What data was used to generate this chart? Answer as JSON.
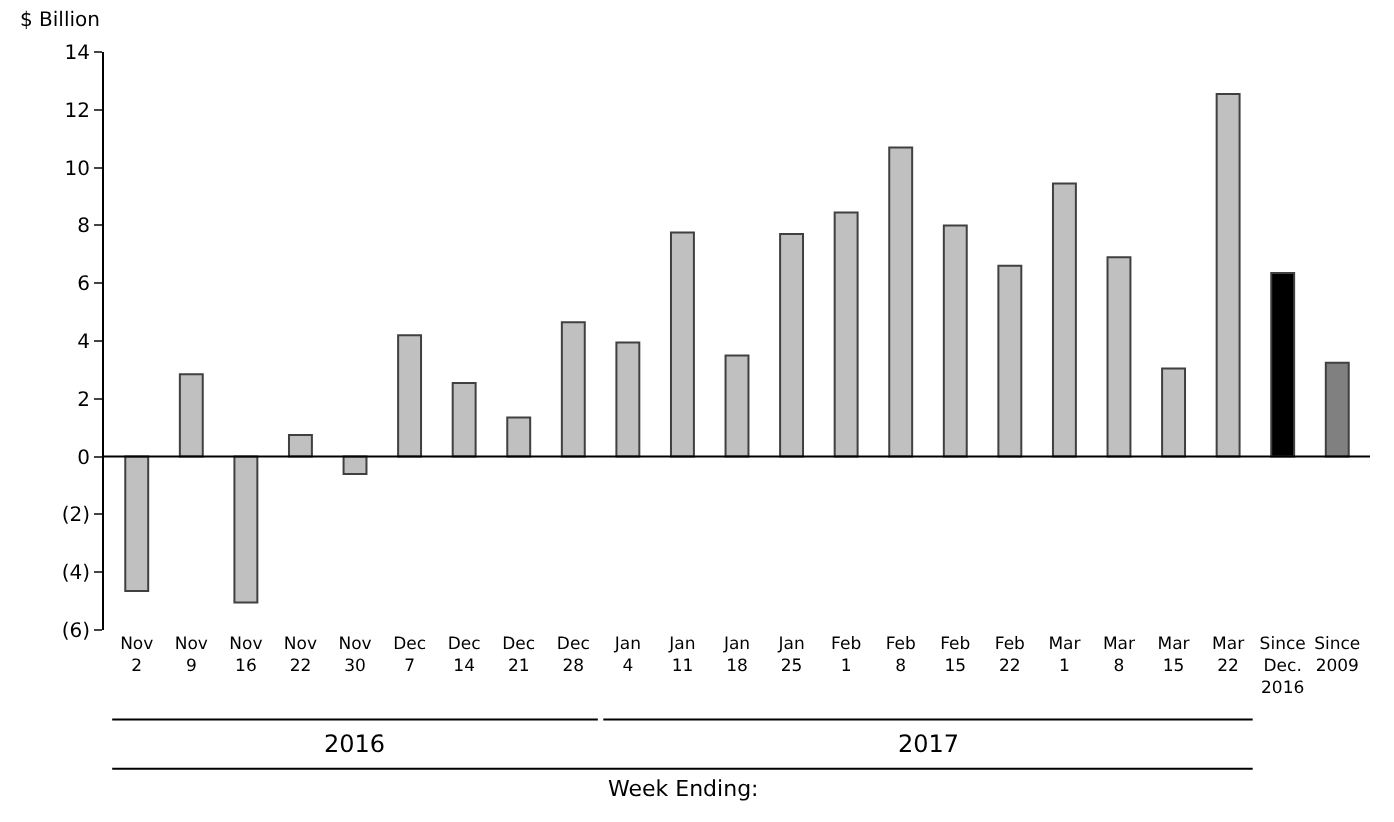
{
  "chart_data": {
    "type": "bar",
    "ylabel": "$ Billion",
    "xlabel": "Week Ending:",
    "annotations": [
      "2016",
      "2017"
    ],
    "categories": [
      "Nov\n2",
      "Nov\n9",
      "Nov\n16",
      "Nov\n22",
      "Nov\n30",
      "Dec\n7",
      "Dec\n14",
      "Dec\n21",
      "Dec\n28",
      "Jan\n4",
      "Jan\n11",
      "Jan\n18",
      "Jan\n25",
      "Feb\n1",
      "Feb\n8",
      "Feb\n15",
      "Feb\n22",
      "Mar\n1",
      "Mar\n8",
      "Mar\n15",
      "Mar\n22",
      "Since\nDec.\n2016",
      "Since\n2009"
    ],
    "values": [
      -4.65,
      2.85,
      -5.05,
      0.75,
      -0.6,
      4.2,
      2.55,
      1.35,
      4.65,
      3.95,
      7.75,
      3.5,
      7.7,
      8.45,
      10.7,
      8.0,
      6.6,
      9.45,
      6.9,
      3.05,
      12.55,
      6.35,
      3.25
    ],
    "colors": [
      "#c0c0c0",
      "#c0c0c0",
      "#c0c0c0",
      "#c0c0c0",
      "#c0c0c0",
      "#c0c0c0",
      "#c0c0c0",
      "#c0c0c0",
      "#c0c0c0",
      "#c0c0c0",
      "#c0c0c0",
      "#c0c0c0",
      "#c0c0c0",
      "#c0c0c0",
      "#c0c0c0",
      "#c0c0c0",
      "#c0c0c0",
      "#c0c0c0",
      "#c0c0c0",
      "#c0c0c0",
      "#c0c0c0",
      "#000000",
      "#808080"
    ],
    "ylim": [
      -6,
      14
    ],
    "yticks": [
      {
        "value": -6,
        "label": "(6)"
      },
      {
        "value": -4,
        "label": "(4)"
      },
      {
        "value": -2,
        "label": "(2)"
      },
      0,
      2,
      4,
      6,
      8,
      10,
      12,
      14
    ],
    "legend": false
  }
}
